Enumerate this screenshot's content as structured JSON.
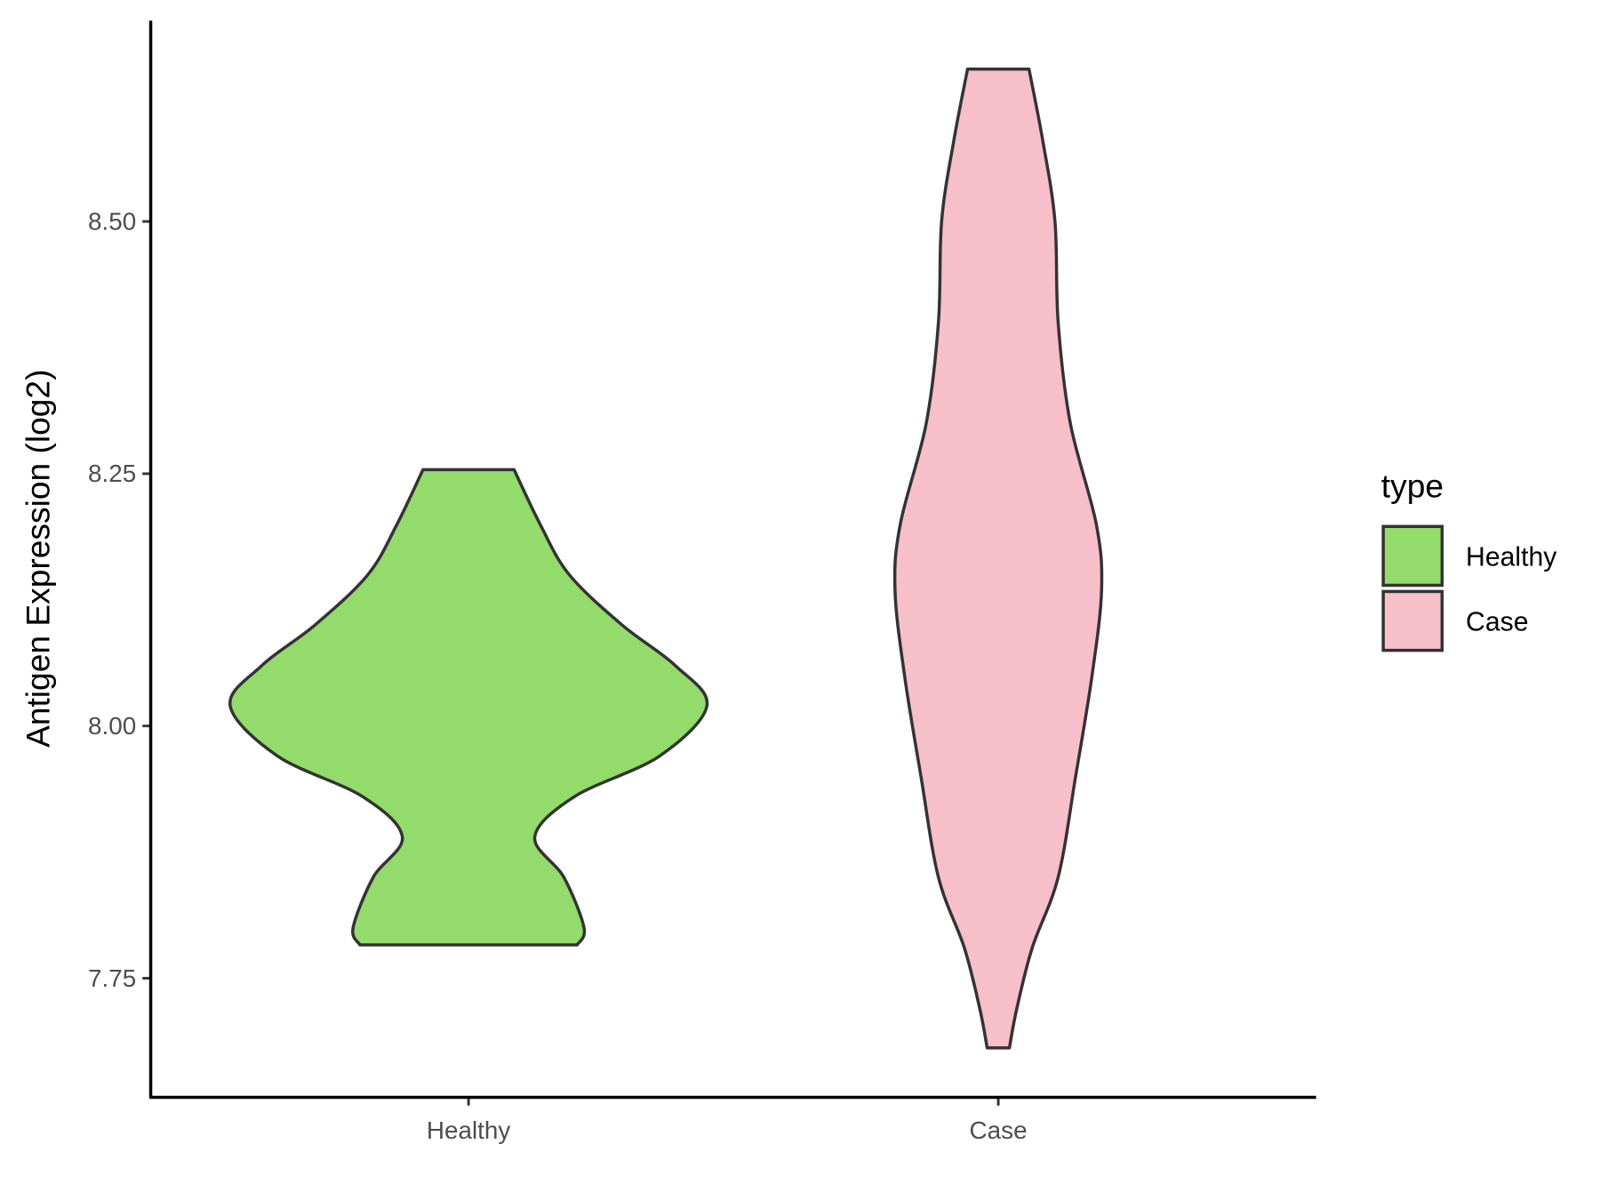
{
  "chart_data": {
    "type": "violin",
    "y_label": "Antigen Expression (log2)",
    "categories": [
      "Healthy",
      "Case"
    ],
    "ylim": [
      7.632,
      8.699
    ],
    "yticks": [
      {
        "value": 7.75,
        "label": "7.75"
      },
      {
        "value": 8.0,
        "label": "8.00"
      },
      {
        "value": 8.25,
        "label": "8.25"
      },
      {
        "value": 8.5,
        "label": "8.50"
      }
    ],
    "legend_title": "type",
    "legend_position": "right",
    "series": [
      {
        "name": "Healthy",
        "color": "#93db6a",
        "density_y": [
          7.783,
          7.8,
          7.85,
          7.89,
          7.93,
          7.97,
          8.02,
          8.06,
          8.1,
          8.15,
          8.2,
          8.254
        ],
        "density": [
          0.205,
          0.218,
          0.18,
          0.125,
          0.2,
          0.36,
          0.45,
          0.39,
          0.29,
          0.19,
          0.135,
          0.086
        ]
      },
      {
        "name": "Case",
        "color": "#f7bfca",
        "density_y": [
          7.681,
          7.72,
          7.78,
          7.85,
          7.95,
          8.05,
          8.135,
          8.2,
          8.3,
          8.4,
          8.5,
          8.58,
          8.651
        ],
        "density": [
          0.021,
          0.035,
          0.064,
          0.113,
          0.146,
          0.177,
          0.195,
          0.185,
          0.136,
          0.113,
          0.107,
          0.084,
          0.058
        ]
      }
    ]
  }
}
